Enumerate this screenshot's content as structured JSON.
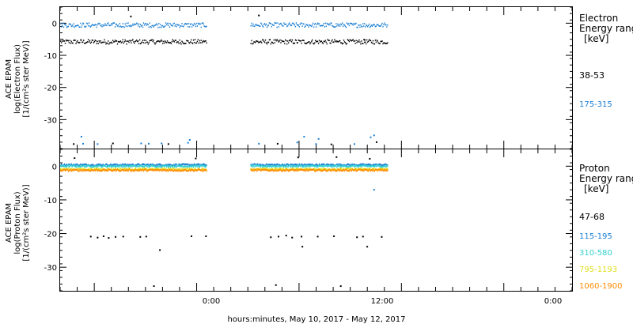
{
  "xlabel": "hours:minutes, May 10, 2017 - May 12, 2017",
  "x_tick_labels": [
    "0:00",
    "12:00",
    "0:00"
  ],
  "chart_data": [
    {
      "type": "scatter",
      "panel": "electron",
      "ylabel_lines": [
        "ACE EPAM",
        "log(Electron Flux)",
        "[1/(cm²s ster MeV)]"
      ],
      "ylim": [
        -39,
        5
      ],
      "y_ticks": [
        0,
        -10,
        -20,
        -30
      ],
      "x_unit": "hours from start of plot",
      "xlim": [
        0,
        60
      ],
      "legend_title": [
        "Electron",
        "Energy range",
        "[keV]"
      ],
      "series": [
        {
          "name": "38-53",
          "color": "#000000",
          "segments": [
            [
              0,
              17.1
            ],
            [
              22.3,
              38.4
            ]
          ],
          "level": -5.8,
          "outliers": [
            [
              8.2,
              2.1
            ],
            [
              23.2,
              2.4
            ],
            [
              35.6,
              -5.2
            ]
          ]
        },
        {
          "name": "175-315",
          "color": "#1a7fd4",
          "segments": [
            [
              0,
              17.1
            ],
            [
              22.3,
              38.4
            ]
          ],
          "level": -0.6,
          "outliers": [
            [
              2.4,
              -35.3
            ],
            [
              11.8,
              -37.4
            ],
            [
              14.9,
              -37.2
            ],
            [
              27.7,
              -37.1
            ],
            [
              30.2,
              -36.0
            ],
            [
              36.7,
              -34.9
            ]
          ]
        }
      ],
      "low_points": [
        [
          1.5,
          -37.6
        ],
        [
          2.6,
          -37.5
        ],
        [
          4.3,
          -37.6
        ],
        [
          6.1,
          -37.4
        ],
        [
          9.4,
          -37.4
        ],
        [
          10.3,
          -37.5
        ],
        [
          12.6,
          -37.6
        ],
        [
          15.1,
          -36.3
        ],
        [
          23.2,
          -37.5
        ],
        [
          25.4,
          -37.5
        ],
        [
          28.5,
          -35.3
        ],
        [
          29.9,
          -37.6
        ],
        [
          31.7,
          -37.7
        ],
        [
          34.4,
          -37.6
        ],
        [
          36.3,
          -35.5
        ],
        [
          37.0,
          -37.0
        ]
      ]
    },
    {
      "type": "scatter",
      "panel": "proton",
      "ylabel_lines": [
        "ACE EPAM",
        "log(Proton Flux)",
        "[1/(cm²s ster MeV)]"
      ],
      "ylim": [
        -37,
        5
      ],
      "y_ticks": [
        0,
        -10,
        -20,
        -30
      ],
      "x_unit": "hours from start of plot",
      "xlim": [
        0,
        60
      ],
      "legend_title": [
        "Proton",
        "Energy range",
        "[keV]"
      ],
      "series": [
        {
          "name": "47-68",
          "color": "#000000",
          "segments": [],
          "level": -21.0
        },
        {
          "name": "115-195",
          "color": "#1a7fd4",
          "segments": [
            [
              0,
              17.1
            ],
            [
              22.3,
              38.4
            ]
          ],
          "level": 0.4
        },
        {
          "name": "310-580",
          "color": "#33d0d0",
          "segments": [
            [
              0,
              17.1
            ],
            [
              22.3,
              38.4
            ]
          ],
          "level": 0.0
        },
        {
          "name": "795-1193",
          "color": "#e0e020",
          "segments": [
            [
              0,
              17.1
            ],
            [
              22.3,
              38.4
            ]
          ],
          "level": -0.9
        },
        {
          "name": "1060-1900",
          "color": "#ff8c00",
          "segments": [
            [
              0,
              17.1
            ],
            [
              22.3,
              38.4
            ]
          ],
          "level": -1.2
        }
      ],
      "black_points": [
        [
          1.6,
          2.4
        ],
        [
          15.8,
          2.3
        ],
        [
          3.5,
          -20.9
        ],
        [
          4.3,
          -21.2
        ],
        [
          5.0,
          -20.8
        ],
        [
          5.6,
          -21.3
        ],
        [
          6.4,
          -21.0
        ],
        [
          7.3,
          -20.9
        ],
        [
          9.3,
          -21.0
        ],
        [
          10.0,
          -20.9
        ],
        [
          11.6,
          -24.9
        ],
        [
          15.3,
          -20.8
        ],
        [
          17.0,
          -20.8
        ],
        [
          24.6,
          -21.1
        ],
        [
          25.5,
          -20.9
        ],
        [
          26.4,
          -20.6
        ],
        [
          27.1,
          -21.2
        ],
        [
          28.2,
          -20.9
        ],
        [
          30.1,
          -20.9
        ],
        [
          32.0,
          -20.8
        ],
        [
          34.7,
          -21.1
        ],
        [
          35.4,
          -20.9
        ],
        [
          35.9,
          -23.9
        ],
        [
          37.6,
          -21.0
        ],
        [
          10.9,
          -35.6
        ],
        [
          25.2,
          -35.3
        ],
        [
          32.8,
          -35.6
        ],
        [
          28.3,
          -23.9
        ],
        [
          27.8,
          2.6
        ],
        [
          32.3,
          2.7
        ],
        [
          36.2,
          2.2
        ]
      ],
      "extra_points": [
        {
          "color": "#1a7fd4",
          "x": 36.7,
          "y": -7.0
        }
      ]
    }
  ]
}
